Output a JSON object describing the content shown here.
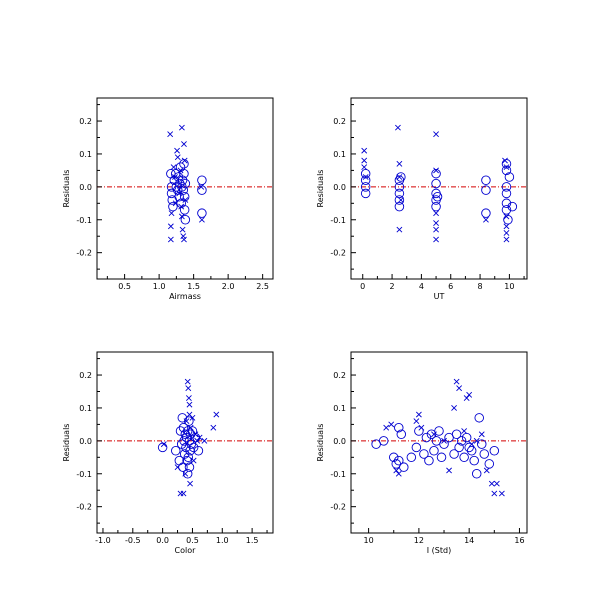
{
  "colors": {
    "marker": "#0000d0",
    "zero_line": "#d40000",
    "axes": "#000000"
  },
  "chart_data": [
    {
      "type": "scatter",
      "name": "airmass",
      "xlabel": "Airmass",
      "ylabel": "Residuals",
      "xlim": [
        0.1,
        2.65
      ],
      "ylim": [
        -0.28,
        0.27
      ],
      "xticks": [
        "0.5",
        "1.0",
        "1.5",
        "2.0",
        "2.5"
      ],
      "xtick_values": [
        0.5,
        1.0,
        1.5,
        2.0,
        2.5
      ],
      "yticks": [
        "-0.2",
        "-0.1",
        "0.0",
        "0.1",
        "0.2"
      ],
      "ytick_values": [
        -0.2,
        -0.1,
        0.0,
        0.1,
        0.2
      ],
      "reference_line": 0.0,
      "series": [
        {
          "marker": "circle",
          "points": [
            [
              1.17,
              0.04
            ],
            [
              1.18,
              0.0
            ],
            [
              1.18,
              -0.02
            ],
            [
              1.19,
              -0.04
            ],
            [
              1.2,
              -0.06
            ],
            [
              1.22,
              0.02
            ],
            [
              1.24,
              0.04
            ],
            [
              1.25,
              0.0
            ],
            [
              1.27,
              -0.01
            ],
            [
              1.28,
              0.03
            ],
            [
              1.29,
              -0.03
            ],
            [
              1.3,
              0.01
            ],
            [
              1.31,
              0.06
            ],
            [
              1.32,
              -0.05
            ],
            [
              1.33,
              0.0
            ],
            [
              1.34,
              0.02
            ],
            [
              1.35,
              -0.01
            ],
            [
              1.36,
              0.07
            ],
            [
              1.36,
              0.04
            ],
            [
              1.37,
              -0.07
            ],
            [
              1.37,
              -0.03
            ],
            [
              1.38,
              0.01
            ],
            [
              1.38,
              -0.1
            ],
            [
              1.62,
              0.02
            ],
            [
              1.62,
              -0.01
            ],
            [
              1.62,
              -0.08
            ]
          ]
        },
        {
          "marker": "x",
          "points": [
            [
              1.16,
              0.16
            ],
            [
              1.17,
              -0.12
            ],
            [
              1.17,
              -0.16
            ],
            [
              1.18,
              -0.08
            ],
            [
              1.21,
              0.06
            ],
            [
              1.23,
              0.03
            ],
            [
              1.24,
              -0.05
            ],
            [
              1.26,
              0.11
            ],
            [
              1.27,
              0.09
            ],
            [
              1.29,
              -0.02
            ],
            [
              1.31,
              0.05
            ],
            [
              1.32,
              -0.06
            ],
            [
              1.33,
              0.18
            ],
            [
              1.33,
              -0.09
            ],
            [
              1.34,
              -0.13
            ],
            [
              1.35,
              -0.15
            ],
            [
              1.36,
              0.13
            ],
            [
              1.36,
              -0.16
            ],
            [
              1.37,
              0.08
            ],
            [
              1.38,
              -0.04
            ],
            [
              1.61,
              0.0
            ],
            [
              1.62,
              -0.1
            ]
          ]
        }
      ]
    },
    {
      "type": "scatter",
      "name": "ut",
      "xlabel": "UT",
      "ylabel": "Residuals",
      "xlim": [
        -0.8,
        11.2
      ],
      "ylim": [
        -0.28,
        0.27
      ],
      "xticks": [
        "0",
        "2",
        "4",
        "6",
        "8",
        "10"
      ],
      "xtick_values": [
        0,
        2,
        4,
        6,
        8,
        10
      ],
      "yticks": [
        "-0.2",
        "-0.1",
        "0.0",
        "0.1",
        "0.2"
      ],
      "ytick_values": [
        -0.2,
        -0.1,
        0.0,
        0.1,
        0.2
      ],
      "reference_line": 0.0,
      "series": [
        {
          "marker": "circle",
          "points": [
            [
              0.2,
              0.04
            ],
            [
              0.2,
              0.02
            ],
            [
              0.2,
              0.0
            ],
            [
              0.2,
              -0.02
            ],
            [
              2.5,
              0.02
            ],
            [
              2.5,
              0.0
            ],
            [
              2.5,
              -0.02
            ],
            [
              2.5,
              -0.04
            ],
            [
              2.5,
              -0.06
            ],
            [
              2.6,
              0.03
            ],
            [
              5.0,
              0.04
            ],
            [
              5.0,
              0.01
            ],
            [
              5.0,
              -0.02
            ],
            [
              5.0,
              -0.04
            ],
            [
              5.0,
              -0.06
            ],
            [
              5.1,
              -0.03
            ],
            [
              8.4,
              0.02
            ],
            [
              8.4,
              -0.01
            ],
            [
              8.4,
              -0.08
            ],
            [
              9.8,
              0.07
            ],
            [
              9.8,
              0.05
            ],
            [
              9.8,
              0.0
            ],
            [
              9.8,
              -0.02
            ],
            [
              9.8,
              -0.05
            ],
            [
              9.8,
              -0.07
            ],
            [
              9.9,
              -0.1
            ],
            [
              10.0,
              0.03
            ],
            [
              10.2,
              -0.06
            ]
          ]
        },
        {
          "marker": "x",
          "points": [
            [
              0.1,
              0.11
            ],
            [
              0.1,
              0.08
            ],
            [
              0.1,
              0.06
            ],
            [
              0.2,
              0.03
            ],
            [
              2.4,
              0.18
            ],
            [
              2.5,
              0.07
            ],
            [
              2.5,
              0.03
            ],
            [
              2.6,
              -0.04
            ],
            [
              2.5,
              -0.13
            ],
            [
              5.0,
              0.16
            ],
            [
              5.0,
              0.05
            ],
            [
              5.0,
              -0.08
            ],
            [
              5.0,
              -0.11
            ],
            [
              5.0,
              -0.13
            ],
            [
              5.0,
              -0.16
            ],
            [
              8.4,
              -0.1
            ],
            [
              9.7,
              0.08
            ],
            [
              9.8,
              0.06
            ],
            [
              9.8,
              -0.09
            ],
            [
              9.8,
              -0.12
            ],
            [
              9.8,
              -0.14
            ],
            [
              9.8,
              -0.16
            ]
          ]
        }
      ]
    },
    {
      "type": "scatter",
      "name": "color",
      "xlabel": "Color",
      "ylabel": "Residuals",
      "xlim": [
        -1.1,
        1.85
      ],
      "ylim": [
        -0.28,
        0.27
      ],
      "xticks": [
        "-1.0",
        "-0.5",
        "0.0",
        "0.5",
        "1.0",
        "1.5"
      ],
      "xtick_values": [
        -1.0,
        -0.5,
        0.0,
        0.5,
        1.0,
        1.5
      ],
      "yticks": [
        "-0.2",
        "-0.1",
        "0.0",
        "0.1",
        "0.2"
      ],
      "ytick_values": [
        -0.2,
        -0.1,
        0.0,
        0.1,
        0.2
      ],
      "reference_line": 0.0,
      "series": [
        {
          "marker": "circle",
          "points": [
            [
              0.0,
              -0.02
            ],
            [
              0.22,
              -0.03
            ],
            [
              0.28,
              -0.06
            ],
            [
              0.3,
              0.03
            ],
            [
              0.32,
              -0.01
            ],
            [
              0.33,
              0.07
            ],
            [
              0.34,
              -0.08
            ],
            [
              0.35,
              0.04
            ],
            [
              0.36,
              0.0
            ],
            [
              0.37,
              -0.04
            ],
            [
              0.38,
              0.02
            ],
            [
              0.39,
              -0.02
            ],
            [
              0.4,
              0.01
            ],
            [
              0.41,
              -0.06
            ],
            [
              0.42,
              0.03
            ],
            [
              0.43,
              -0.05
            ],
            [
              0.44,
              0.06
            ],
            [
              0.45,
              0.0
            ],
            [
              0.46,
              -0.03
            ],
            [
              0.47,
              0.02
            ],
            [
              0.48,
              -0.01
            ],
            [
              0.5,
              0.03
            ],
            [
              0.52,
              -0.02
            ],
            [
              0.55,
              0.01
            ],
            [
              0.6,
              -0.03
            ],
            [
              0.42,
              -0.1
            ],
            [
              0.45,
              -0.08
            ]
          ]
        },
        {
          "marker": "x",
          "points": [
            [
              0.02,
              -0.01
            ],
            [
              0.25,
              -0.08
            ],
            [
              0.3,
              -0.16
            ],
            [
              0.35,
              -0.16
            ],
            [
              0.38,
              -0.1
            ],
            [
              0.4,
              0.06
            ],
            [
              0.42,
              0.18
            ],
            [
              0.43,
              0.16
            ],
            [
              0.44,
              0.13
            ],
            [
              0.45,
              0.11
            ],
            [
              0.45,
              0.08
            ],
            [
              0.46,
              -0.13
            ],
            [
              0.47,
              0.04
            ],
            [
              0.5,
              0.07
            ],
            [
              0.52,
              -0.06
            ],
            [
              0.55,
              0.02
            ],
            [
              0.58,
              0.0
            ],
            [
              0.62,
              0.01
            ],
            [
              0.7,
              0.0
            ],
            [
              0.85,
              0.04
            ],
            [
              0.9,
              0.08
            ]
          ]
        }
      ]
    },
    {
      "type": "scatter",
      "name": "i-std",
      "xlabel": "I (Std)",
      "ylabel": "Residuals",
      "xlim": [
        9.3,
        16.3
      ],
      "ylim": [
        -0.28,
        0.27
      ],
      "xticks": [
        "10",
        "12",
        "14",
        "16"
      ],
      "xtick_values": [
        10,
        12,
        14,
        16
      ],
      "yticks": [
        "-0.2",
        "-0.1",
        "0.0",
        "0.1",
        "0.2"
      ],
      "ytick_values": [
        -0.2,
        -0.1,
        0.0,
        0.1,
        0.2
      ],
      "reference_line": 0.0,
      "series": [
        {
          "marker": "circle",
          "points": [
            [
              10.3,
              -0.01
            ],
            [
              10.6,
              0.0
            ],
            [
              11.0,
              -0.05
            ],
            [
              11.1,
              -0.07
            ],
            [
              11.2,
              0.04
            ],
            [
              11.2,
              -0.06
            ],
            [
              11.3,
              0.02
            ],
            [
              11.4,
              -0.08
            ],
            [
              11.7,
              -0.05
            ],
            [
              11.9,
              -0.02
            ],
            [
              12.0,
              0.03
            ],
            [
              12.2,
              -0.04
            ],
            [
              12.3,
              0.01
            ],
            [
              12.4,
              -0.06
            ],
            [
              12.5,
              0.02
            ],
            [
              12.6,
              -0.03
            ],
            [
              12.7,
              0.0
            ],
            [
              12.8,
              0.03
            ],
            [
              12.9,
              -0.05
            ],
            [
              13.0,
              -0.01
            ],
            [
              13.2,
              0.01
            ],
            [
              13.4,
              -0.04
            ],
            [
              13.5,
              0.02
            ],
            [
              13.6,
              -0.02
            ],
            [
              13.7,
              0.0
            ],
            [
              13.8,
              -0.05
            ],
            [
              13.9,
              0.01
            ],
            [
              14.0,
              -0.02
            ],
            [
              14.1,
              -0.03
            ],
            [
              14.2,
              -0.06
            ],
            [
              14.3,
              -0.1
            ],
            [
              14.4,
              0.07
            ],
            [
              14.5,
              -0.01
            ],
            [
              14.6,
              -0.04
            ],
            [
              14.8,
              -0.07
            ],
            [
              15.0,
              -0.03
            ]
          ]
        },
        {
          "marker": "x",
          "points": [
            [
              10.7,
              0.04
            ],
            [
              10.9,
              0.05
            ],
            [
              11.1,
              -0.09
            ],
            [
              11.2,
              -0.1
            ],
            [
              11.9,
              0.06
            ],
            [
              12.0,
              0.08
            ],
            [
              12.1,
              0.04
            ],
            [
              12.6,
              0.02
            ],
            [
              13.0,
              0.0
            ],
            [
              13.2,
              -0.09
            ],
            [
              13.4,
              0.1
            ],
            [
              13.5,
              0.18
            ],
            [
              13.6,
              0.16
            ],
            [
              13.9,
              0.13
            ],
            [
              14.0,
              0.14
            ],
            [
              14.1,
              -0.01
            ],
            [
              14.5,
              0.02
            ],
            [
              14.7,
              -0.09
            ],
            [
              14.9,
              -0.13
            ],
            [
              15.0,
              -0.16
            ],
            [
              15.1,
              -0.13
            ],
            [
              15.3,
              -0.16
            ],
            [
              14.3,
              0.0
            ],
            [
              13.8,
              0.03
            ]
          ]
        }
      ]
    }
  ]
}
